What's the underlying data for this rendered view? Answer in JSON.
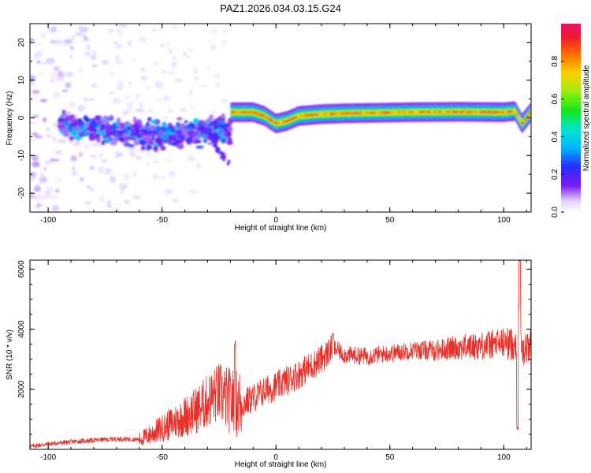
{
  "chart_data": [
    {
      "type": "heatmap",
      "title": "PAZ1.2026.034.03.15.G24",
      "xlabel": "Height of straight line (km)",
      "ylabel": "Frequency (Hz)",
      "xlim": [
        -108,
        112
      ],
      "ylim": [
        -25,
        25
      ],
      "xticks": [
        -100,
        -50,
        0,
        50,
        100
      ],
      "yticks": [
        -20,
        -10,
        0,
        10,
        20
      ],
      "colorbar": {
        "label": "Normalized spectral amplitude",
        "range": [
          0,
          1
        ],
        "ticks": [
          0.0,
          0.2,
          0.4,
          0.6,
          0.8
        ]
      },
      "features": [
        {
          "name": "scattered-noise",
          "x_range": [
            -108,
            -20
          ],
          "freq_spread_hz": 25,
          "amplitude": 0.05
        },
        {
          "name": "multipath-cluster",
          "x_range": [
            -95,
            -20
          ],
          "center_freq_hz": -3,
          "freq_spread_hz": 5,
          "amplitude": 0.3
        },
        {
          "name": "coherent-signal",
          "x_range": [
            -20,
            112
          ],
          "center_freq_hz": 1.5,
          "amplitude": 0.9
        }
      ],
      "ridge": {
        "x": [
          -20,
          -10,
          -5,
          0,
          5,
          10,
          20,
          30,
          40,
          60,
          80,
          100,
          105,
          108,
          112
        ],
        "freq": [
          1.5,
          1.5,
          0.5,
          -1.5,
          -0.8,
          0.5,
          1.0,
          1.2,
          1.3,
          1.5,
          1.6,
          1.5,
          1.8,
          -1.5,
          1.5
        ]
      }
    },
    {
      "type": "line",
      "title": "",
      "xlabel": "Height of straight line (km)",
      "ylabel": "SNR (10 * v/v)",
      "xlim": [
        -108,
        112
      ],
      "ylim": [
        0,
        6300
      ],
      "xticks": [
        -100,
        -50,
        0,
        50,
        100
      ],
      "yticks": [
        2000,
        4000,
        6000
      ],
      "series": [
        {
          "name": "SNR",
          "color": "#e8312a",
          "x": [
            -108,
            -100,
            -90,
            -80,
            -70,
            -60,
            -55,
            -50,
            -45,
            -40,
            -35,
            -30,
            -25,
            -20,
            -15,
            -10,
            -5,
            0,
            5,
            10,
            15,
            20,
            25,
            30,
            40,
            50,
            60,
            70,
            80,
            90,
            100,
            104,
            106,
            107,
            108,
            112
          ],
          "y": [
            100,
            180,
            250,
            300,
            350,
            330,
            500,
            700,
            900,
            1100,
            1300,
            1600,
            1900,
            1600,
            1500,
            1700,
            1950,
            2100,
            2300,
            2500,
            2750,
            3000,
            3400,
            3150,
            3100,
            3200,
            3300,
            3300,
            3400,
            3450,
            3550,
            3500,
            3600,
            5300,
            3350,
            3400
          ]
        }
      ],
      "spikes": [
        {
          "x": -18,
          "y": 3550
        },
        {
          "x": 25,
          "y": 3800
        },
        {
          "x": 107,
          "y": 6300
        },
        {
          "x": 106,
          "y": 700
        }
      ]
    }
  ],
  "colors": {
    "noise": "#c8b8f0",
    "cluster": "#5a18e6",
    "signal_core": "#e6155a",
    "snr_line": "#e8312a"
  }
}
